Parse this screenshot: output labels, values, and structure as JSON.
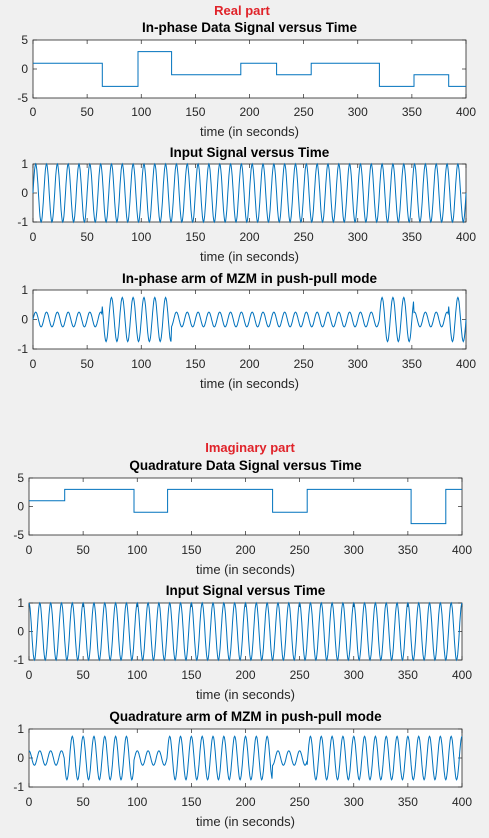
{
  "figure": {
    "background": "#f0f0f0",
    "line_color": "#0072bd",
    "heading_color": "#e0232a",
    "headings": {
      "real": "Real part",
      "imag": "Imaginary part"
    }
  },
  "chart_data": [
    {
      "type": "line",
      "title": "In-phase Data Signal versus Time",
      "xlabel": "time (in seconds)",
      "ylabel": "",
      "xlim": [
        0,
        400
      ],
      "ylim": [
        -5,
        5
      ],
      "xticks": [
        0,
        50,
        100,
        150,
        200,
        250,
        300,
        350,
        400
      ],
      "yticks": [
        5,
        0,
        -5
      ],
      "grid": false,
      "kind": "step",
      "steps": [
        [
          0,
          1
        ],
        [
          64,
          -3
        ],
        [
          97,
          3
        ],
        [
          128,
          -1
        ],
        [
          192,
          1
        ],
        [
          225,
          -1
        ],
        [
          257,
          1
        ],
        [
          320,
          -3
        ],
        [
          352,
          -1
        ],
        [
          384,
          -3
        ],
        [
          400,
          -3
        ]
      ]
    },
    {
      "type": "line",
      "title": "Input Signal versus Time",
      "xlabel": "time (in seconds)",
      "ylabel": "",
      "xlim": [
        0,
        400
      ],
      "ylim": [
        -1,
        1
      ],
      "xticks": [
        0,
        50,
        100,
        150,
        200,
        250,
        300,
        350,
        400
      ],
      "yticks": [
        1,
        0,
        -1
      ],
      "grid": false,
      "kind": "carrier",
      "frequency": 0.1,
      "phase": "sin",
      "amplitude": 1
    },
    {
      "type": "line",
      "title": "In-phase arm of MZM in push-pull mode",
      "xlabel": "time (in seconds)",
      "ylabel": "",
      "xlim": [
        0,
        400
      ],
      "ylim": [
        -1,
        1
      ],
      "xticks": [
        0,
        50,
        100,
        150,
        200,
        250,
        300,
        350,
        400
      ],
      "yticks": [
        1,
        0,
        -1
      ],
      "grid": false,
      "kind": "modulated",
      "frequency": 0.1,
      "phase": "sin",
      "envelope": [
        [
          0,
          0.25
        ],
        [
          64,
          0.75
        ],
        [
          97,
          0.75
        ],
        [
          128,
          0.25
        ],
        [
          192,
          0.25
        ],
        [
          225,
          0.25
        ],
        [
          257,
          0.25
        ],
        [
          320,
          0.75
        ],
        [
          352,
          0.25
        ],
        [
          384,
          0.75
        ],
        [
          400,
          0.75
        ]
      ]
    },
    {
      "type": "line",
      "title": "Quadrature Data Signal versus Time",
      "xlabel": "time (in seconds)",
      "ylabel": "",
      "xlim": [
        0,
        400
      ],
      "ylim": [
        -5,
        5
      ],
      "xticks": [
        0,
        50,
        100,
        150,
        200,
        250,
        300,
        350,
        400
      ],
      "yticks": [
        5,
        0,
        -5
      ],
      "grid": false,
      "kind": "step",
      "steps": [
        [
          0,
          1
        ],
        [
          33,
          3
        ],
        [
          97,
          -1
        ],
        [
          128,
          3
        ],
        [
          225,
          -1
        ],
        [
          257,
          3
        ],
        [
          353,
          -3
        ],
        [
          385,
          3
        ],
        [
          400,
          3
        ]
      ]
    },
    {
      "type": "line",
      "title": "Input Signal versus Time",
      "xlabel": "time (in seconds)",
      "ylabel": "",
      "xlim": [
        0,
        400
      ],
      "ylim": [
        -1,
        1
      ],
      "xticks": [
        0,
        50,
        100,
        150,
        200,
        250,
        300,
        350,
        400
      ],
      "yticks": [
        1,
        0,
        -1
      ],
      "grid": false,
      "kind": "carrier",
      "frequency": 0.1,
      "phase": "cos",
      "amplitude": 1
    },
    {
      "type": "line",
      "title": "Quadrature arm of MZM in push-pull mode",
      "xlabel": "time (in seconds)",
      "ylabel": "",
      "xlim": [
        0,
        400
      ],
      "ylim": [
        -1,
        1
      ],
      "xticks": [
        0,
        50,
        100,
        150,
        200,
        250,
        300,
        350,
        400
      ],
      "yticks": [
        1,
        0,
        -1
      ],
      "grid": false,
      "kind": "modulated",
      "frequency": 0.1,
      "phase": "cos",
      "envelope": [
        [
          0,
          0.25
        ],
        [
          33,
          0.75
        ],
        [
          97,
          0.25
        ],
        [
          128,
          0.75
        ],
        [
          225,
          0.25
        ],
        [
          257,
          0.75
        ],
        [
          353,
          0.75
        ],
        [
          385,
          0.75
        ],
        [
          400,
          0.75
        ]
      ]
    }
  ]
}
